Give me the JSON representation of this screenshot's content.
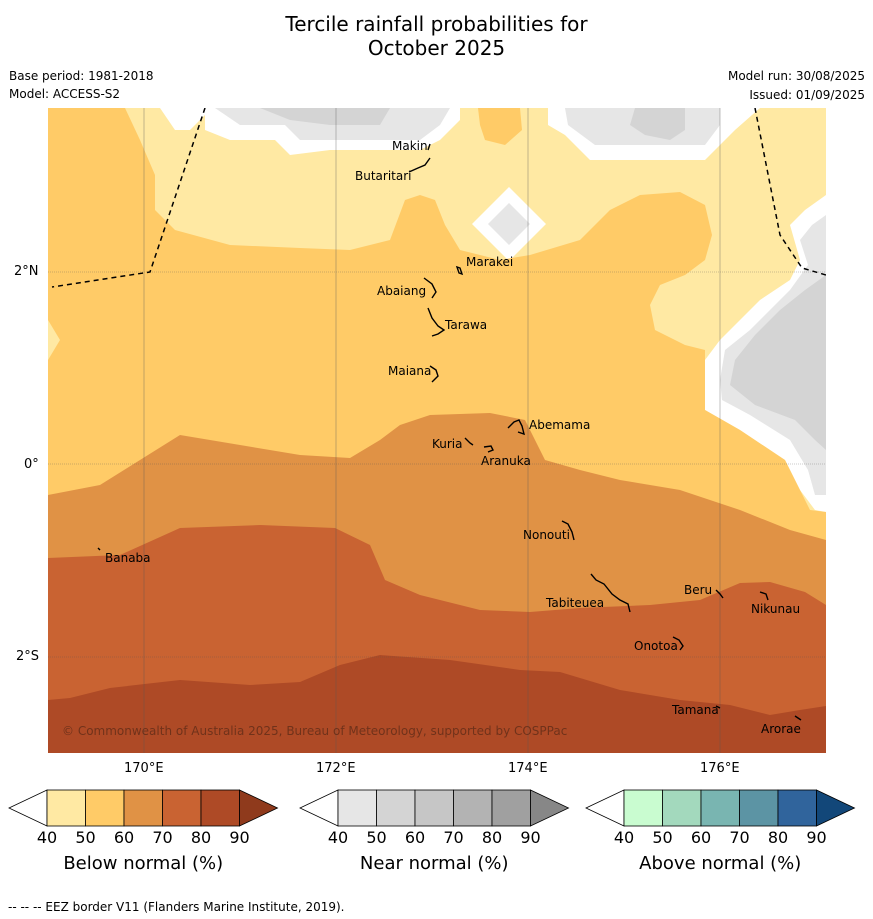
{
  "title_line1": "Tercile rainfall probabilities for",
  "title_line2": "October 2025",
  "meta": {
    "base_period": "Base period: 1981-2018",
    "model": "Model: ACCESS-S2",
    "model_run": "Model run: 30/08/2025",
    "issued": "Issued: 01/09/2025"
  },
  "map": {
    "longitude_labels": [
      "170°E",
      "172°E",
      "174°E",
      "176°E"
    ],
    "latitude_labels": [
      "2°N",
      "0°",
      "2°S"
    ],
    "copyright": "© Commonwealth of Australia 2025, Bureau of Meteorology, supported by COSPPac",
    "islands": [
      "Makin",
      "Butaritari",
      "Marakei",
      "Abaiang",
      "Tarawa",
      "Maiana",
      "Abemama",
      "Kuria",
      "Aranuka",
      "Nonouti",
      "Banaba",
      "Beru",
      "Nikunau",
      "Tabiteuea",
      "Onotoa",
      "Tamana",
      "Arorae"
    ],
    "colors": {
      "below_50": "#ffe9a3",
      "below_60": "#ffcb67",
      "below_70": "#e09245",
      "below_80": "#c96332",
      "below_90": "#ae4a26",
      "near_50": "#e6e6e6",
      "near_60": "#d4d4d4",
      "blank": "#ffffff"
    }
  },
  "colorbars": [
    {
      "label": "Below normal (%)",
      "ticks": [
        "40",
        "50",
        "60",
        "70",
        "80",
        "90"
      ],
      "colors": [
        "#ffffff",
        "#ffe9a3",
        "#ffcb67",
        "#e09245",
        "#c96332",
        "#ae4a26",
        "#8f3a1c"
      ]
    },
    {
      "label": "Near normal (%)",
      "ticks": [
        "40",
        "50",
        "60",
        "70",
        "80",
        "90"
      ],
      "colors": [
        "#ffffff",
        "#e6e6e6",
        "#d4d4d4",
        "#c6c6c6",
        "#b3b3b3",
        "#a0a0a0",
        "#878787"
      ]
    },
    {
      "label": "Above normal (%)",
      "ticks": [
        "40",
        "50",
        "60",
        "70",
        "80",
        "90"
      ],
      "colors": [
        "#ffffff",
        "#c9fcd0",
        "#a3d9bd",
        "#79b5b1",
        "#5c94a4",
        "#30649c",
        "#124779"
      ]
    }
  ],
  "footer": "-- -- -- EEZ border V11 (Flanders Marine Institute, 2019)."
}
